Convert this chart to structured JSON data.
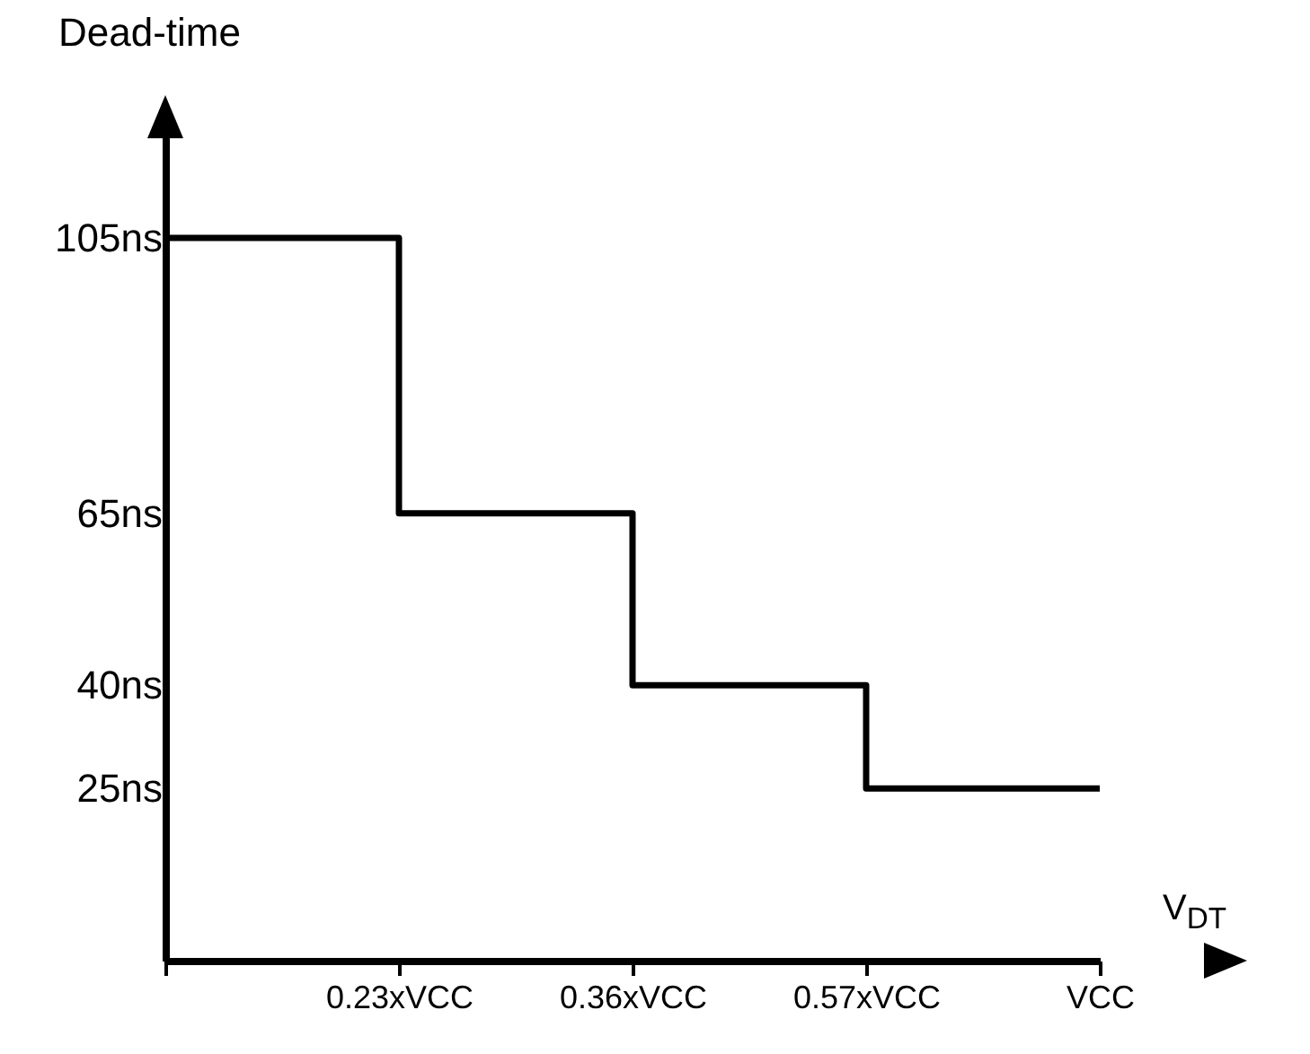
{
  "chart_data": {
    "type": "step",
    "ylabel": "Dead-time",
    "xlabel": "V$_{DT}$",
    "categories": [
      null,
      "0.23xVCC",
      "0.36xVCC",
      "0.57xVCC",
      "VCC"
    ],
    "values": [
      105,
      65,
      40,
      25,
      25
    ],
    "color": "#000000",
    "line_style": "solid",
    "marker": "none",
    "grid": false,
    "ylim": [
      0,
      120
    ],
    "yticks": [
      {
        "value": 25,
        "label": "25ns"
      },
      {
        "value": 40,
        "label": "40ns"
      },
      {
        "value": 65,
        "label": "65ns"
      },
      {
        "value": 105,
        "label": "105ns"
      }
    ]
  }
}
